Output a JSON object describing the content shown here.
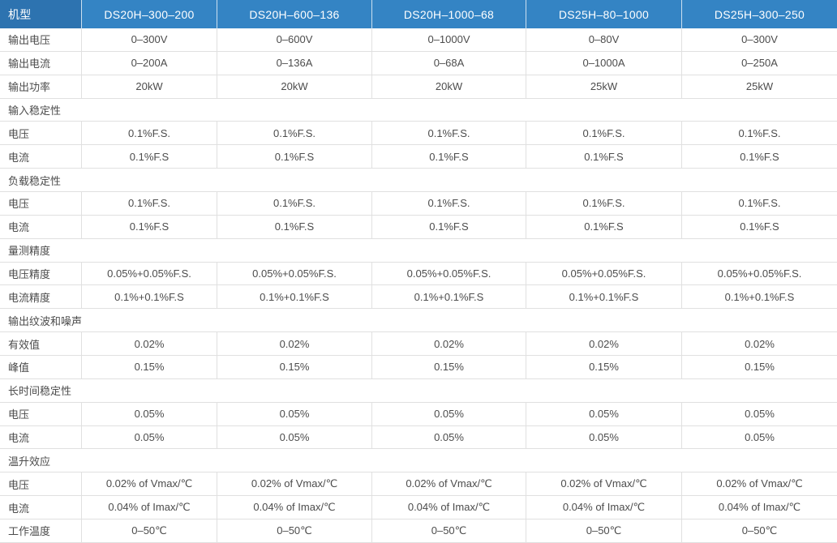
{
  "table": {
    "corner_label": "机型",
    "columns": [
      "DS20H–300–200",
      "DS20H–600–136",
      "DS20H–1000–68",
      "DS25H–80–1000",
      "DS25H–300–250"
    ],
    "rows": [
      {
        "type": "data",
        "label": "输出电压",
        "values": [
          "0–300V",
          "0–600V",
          "0–1000V",
          "0–80V",
          "0–300V"
        ]
      },
      {
        "type": "data",
        "label": "输出电流",
        "values": [
          "0–200A",
          "0–136A",
          "0–68A",
          "0–1000A",
          "0–250A"
        ]
      },
      {
        "type": "data",
        "label": "输出功率",
        "values": [
          "20kW",
          "20kW",
          "20kW",
          "25kW",
          "25kW"
        ]
      },
      {
        "type": "section",
        "label": "输入稳定性"
      },
      {
        "type": "data",
        "label": "电压",
        "values": [
          "0.1%F.S.",
          "0.1%F.S.",
          "0.1%F.S.",
          "0.1%F.S.",
          "0.1%F.S."
        ]
      },
      {
        "type": "data",
        "label": "电流",
        "values": [
          "0.1%F.S",
          "0.1%F.S",
          "0.1%F.S",
          "0.1%F.S",
          "0.1%F.S"
        ]
      },
      {
        "type": "section",
        "label": "负载稳定性"
      },
      {
        "type": "data",
        "label": "电压",
        "values": [
          "0.1%F.S.",
          "0.1%F.S.",
          "0.1%F.S.",
          "0.1%F.S.",
          "0.1%F.S."
        ]
      },
      {
        "type": "data",
        "label": "电流",
        "values": [
          "0.1%F.S",
          "0.1%F.S",
          "0.1%F.S",
          "0.1%F.S",
          "0.1%F.S"
        ]
      },
      {
        "type": "section",
        "label": "量测精度"
      },
      {
        "type": "data",
        "label": "电压精度",
        "values": [
          "0.05%+0.05%F.S.",
          "0.05%+0.05%F.S.",
          "0.05%+0.05%F.S.",
          "0.05%+0.05%F.S.",
          "0.05%+0.05%F.S."
        ]
      },
      {
        "type": "data",
        "label": "电流精度",
        "values": [
          "0.1%+0.1%F.S",
          "0.1%+0.1%F.S",
          "0.1%+0.1%F.S",
          "0.1%+0.1%F.S",
          "0.1%+0.1%F.S"
        ]
      },
      {
        "type": "section",
        "label": "输出纹波和噪声"
      },
      {
        "type": "data",
        "label": "有效值",
        "values": [
          "0.02%",
          "0.02%",
          "0.02%",
          "0.02%",
          "0.02%"
        ]
      },
      {
        "type": "data",
        "label": "峰值",
        "values": [
          "0.15%",
          "0.15%",
          "0.15%",
          "0.15%",
          "0.15%"
        ]
      },
      {
        "type": "section",
        "label": "长时间稳定性"
      },
      {
        "type": "data",
        "label": "电压",
        "values": [
          "0.05%",
          "0.05%",
          "0.05%",
          "0.05%",
          "0.05%"
        ]
      },
      {
        "type": "data",
        "label": "电流",
        "values": [
          "0.05%",
          "0.05%",
          "0.05%",
          "0.05%",
          "0.05%"
        ]
      },
      {
        "type": "section",
        "label": "温升效应"
      },
      {
        "type": "data",
        "label": "电压",
        "values": [
          "0.02% of Vmax/℃",
          "0.02% of Vmax/℃",
          "0.02% of Vmax/℃",
          "0.02% of Vmax/℃",
          "0.02% of Vmax/℃"
        ]
      },
      {
        "type": "data",
        "label": "电流",
        "values": [
          "0.04% of Imax/℃",
          "0.04% of Imax/℃",
          "0.04% of Imax/℃",
          "0.04% of Imax/℃",
          "0.04% of Imax/℃"
        ]
      },
      {
        "type": "data",
        "label": "工作温度",
        "values": [
          "0–50℃",
          "0–50℃",
          "0–50℃",
          "0–50℃",
          "0–50℃"
        ]
      }
    ],
    "colors": {
      "header_bg": "#3484c4",
      "header_corner_bg": "#2d73b0",
      "header_text": "#ffffff",
      "body_text": "#4c4c4c",
      "border": "#e0e0e0"
    }
  }
}
